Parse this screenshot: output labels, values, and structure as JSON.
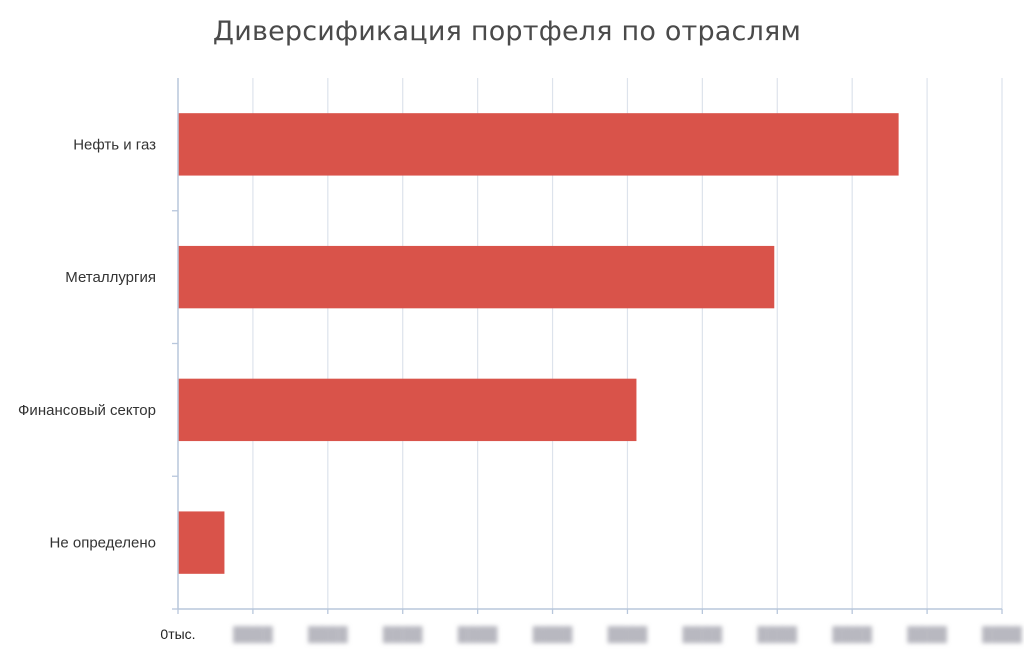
{
  "title": "Диверсификация портфеля по отраслям",
  "chart_data": {
    "type": "bar",
    "orientation": "horizontal",
    "title": "Диверсификация портфеля по отраслям",
    "categories": [
      "Нефть и газ",
      "Металлургия",
      "Финансовый сектор",
      "Не определено"
    ],
    "values": [
      9.62,
      7.96,
      6.12,
      0.62
    ],
    "x_tick_labels": [
      "0тыс.",
      "",
      "",
      "",
      "",
      "",
      "",
      "",
      "",
      "",
      "",
      ""
    ],
    "x_tick_labels_note": "only the first tick label is legible; the rest are blurred",
    "xlim": [
      0,
      11
    ],
    "xlabel": "",
    "ylabel": "",
    "grid": "vertical",
    "legend": "none",
    "colors": {
      "bar": "#d9534a",
      "grid": "#dde3ec",
      "axis": "#b8c7dc",
      "title": "#4a4a4a"
    }
  }
}
